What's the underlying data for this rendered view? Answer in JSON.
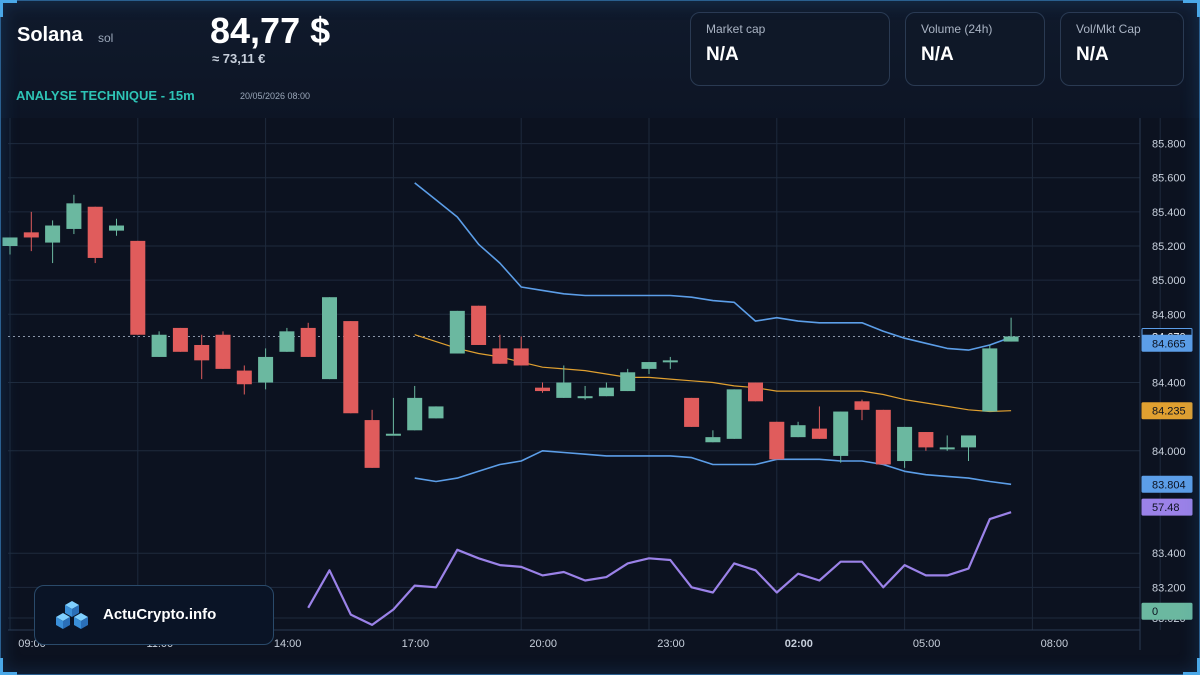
{
  "header": {
    "coin_name": "Solana",
    "coin_symbol": "sol",
    "price_usd": "84,77 $",
    "price_eur": "≈ 73,11 €",
    "analysis_label": "ANALYSE TECHNIQUE - 15m",
    "analysis_date": "20/05/2026 08:00"
  },
  "stats": [
    {
      "label": "Market cap",
      "value": "N/A"
    },
    {
      "label": "Volume (24h)",
      "value": "N/A"
    },
    {
      "label": "Vol/Mkt Cap",
      "value": "N/A"
    }
  ],
  "logo": {
    "text": "ActuCrypto.info"
  },
  "chart_data": {
    "type": "candlestick",
    "ylim": [
      82.95,
      85.95
    ],
    "y_ticks": [
      "85.800",
      "85.600",
      "85.400",
      "85.200",
      "85.000",
      "84.800",
      "84.400",
      "84.000",
      "83.400",
      "83.200",
      "83.020"
    ],
    "x_ticks": [
      "09:00",
      "11:00",
      "14:00",
      "17:00",
      "20:00",
      "23:00",
      "02:00",
      "05:00",
      "08:00"
    ],
    "x_ticks_bold": [
      "02:00"
    ],
    "colors": {
      "up": "#6bb8a0",
      "down": "#e05c5c",
      "bollinger": "#5c9ee8",
      "ma": "#e0a030",
      "rsi": "#9b82e8",
      "grid": "#1e2a3c",
      "axis_text": "#c8d0dc"
    },
    "candles": [
      {
        "o": 85.2,
        "h": 85.25,
        "l": 85.15,
        "c": 85.25
      },
      {
        "o": 85.28,
        "h": 85.4,
        "l": 85.17,
        "c": 85.25
      },
      {
        "o": 85.22,
        "h": 85.35,
        "l": 85.1,
        "c": 85.32
      },
      {
        "o": 85.3,
        "h": 85.5,
        "l": 85.27,
        "c": 85.45
      },
      {
        "o": 85.43,
        "h": 85.43,
        "l": 85.1,
        "c": 85.13
      },
      {
        "o": 85.29,
        "h": 85.36,
        "l": 85.26,
        "c": 85.32
      },
      {
        "o": 85.23,
        "h": 85.23,
        "l": 84.68,
        "c": 84.68
      },
      {
        "o": 84.55,
        "h": 84.7,
        "l": 84.55,
        "c": 84.68
      },
      {
        "o": 84.72,
        "h": 84.72,
        "l": 84.58,
        "c": 84.58
      },
      {
        "o": 84.62,
        "h": 84.68,
        "l": 84.42,
        "c": 84.53
      },
      {
        "o": 84.68,
        "h": 84.7,
        "l": 84.48,
        "c": 84.48
      },
      {
        "o": 84.47,
        "h": 84.5,
        "l": 84.33,
        "c": 84.39
      },
      {
        "o": 84.4,
        "h": 84.6,
        "l": 84.36,
        "c": 84.55
      },
      {
        "o": 84.58,
        "h": 84.72,
        "l": 84.58,
        "c": 84.7
      },
      {
        "o": 84.72,
        "h": 84.75,
        "l": 84.55,
        "c": 84.55
      },
      {
        "o": 84.42,
        "h": 84.9,
        "l": 84.42,
        "c": 84.9
      },
      {
        "o": 84.76,
        "h": 84.76,
        "l": 84.22,
        "c": 84.22
      },
      {
        "o": 84.18,
        "h": 84.24,
        "l": 83.9,
        "c": 83.9
      },
      {
        "o": 84.1,
        "h": 84.31,
        "l": 84.1,
        "c": 84.1
      },
      {
        "o": 84.12,
        "h": 84.38,
        "l": 84.12,
        "c": 84.31
      },
      {
        "o": 84.19,
        "h": 84.26,
        "l": 84.19,
        "c": 84.26
      },
      {
        "o": 84.57,
        "h": 84.82,
        "l": 84.57,
        "c": 84.82
      },
      {
        "o": 84.85,
        "h": 84.85,
        "l": 84.62,
        "c": 84.62
      },
      {
        "o": 84.6,
        "h": 84.68,
        "l": 84.51,
        "c": 84.51
      },
      {
        "o": 84.6,
        "h": 84.67,
        "l": 84.5,
        "c": 84.5
      },
      {
        "o": 84.37,
        "h": 84.4,
        "l": 84.34,
        "c": 84.35
      },
      {
        "o": 84.31,
        "h": 84.5,
        "l": 84.31,
        "c": 84.4
      },
      {
        "o": 84.32,
        "h": 84.38,
        "l": 84.3,
        "c": 84.32
      },
      {
        "o": 84.32,
        "h": 84.4,
        "l": 84.32,
        "c": 84.37
      },
      {
        "o": 84.35,
        "h": 84.48,
        "l": 84.35,
        "c": 84.46
      },
      {
        "o": 84.48,
        "h": 84.52,
        "l": 84.45,
        "c": 84.52
      },
      {
        "o": 84.53,
        "h": 84.55,
        "l": 84.48,
        "c": 84.53
      },
      {
        "o": 84.31,
        "h": 84.31,
        "l": 84.14,
        "c": 84.14
      },
      {
        "o": 84.05,
        "h": 84.12,
        "l": 84.05,
        "c": 84.08
      },
      {
        "o": 84.07,
        "h": 84.36,
        "l": 84.07,
        "c": 84.36
      },
      {
        "o": 84.4,
        "h": 84.4,
        "l": 84.29,
        "c": 84.29
      },
      {
        "o": 84.17,
        "h": 84.17,
        "l": 83.95,
        "c": 83.95
      },
      {
        "o": 84.08,
        "h": 84.17,
        "l": 84.08,
        "c": 84.15
      },
      {
        "o": 84.13,
        "h": 84.26,
        "l": 84.07,
        "c": 84.07
      },
      {
        "o": 83.97,
        "h": 84.23,
        "l": 83.93,
        "c": 84.23
      },
      {
        "o": 84.29,
        "h": 84.3,
        "l": 84.18,
        "c": 84.24
      },
      {
        "o": 84.24,
        "h": 84.24,
        "l": 83.92,
        "c": 83.92
      },
      {
        "o": 83.94,
        "h": 84.14,
        "l": 83.9,
        "c": 84.14
      },
      {
        "o": 84.11,
        "h": 84.11,
        "l": 84.0,
        "c": 84.02
      },
      {
        "o": 84.02,
        "h": 84.09,
        "l": 84.0,
        "c": 84.02
      },
      {
        "o": 84.02,
        "h": 84.09,
        "l": 83.94,
        "c": 84.09
      },
      {
        "o": 84.23,
        "h": 84.62,
        "l": 84.23,
        "c": 84.6
      },
      {
        "o": 84.64,
        "h": 84.78,
        "l": 84.64,
        "c": 84.67
      }
    ],
    "bollinger_upper": [
      {
        "i": 19,
        "v": 85.57
      },
      {
        "i": 20,
        "v": 85.47
      },
      {
        "i": 21,
        "v": 85.37
      },
      {
        "i": 22,
        "v": 85.21
      },
      {
        "i": 23,
        "v": 85.1
      },
      {
        "i": 24,
        "v": 84.96
      },
      {
        "i": 25,
        "v": 84.94
      },
      {
        "i": 26,
        "v": 84.92
      },
      {
        "i": 27,
        "v": 84.91
      },
      {
        "i": 28,
        "v": 84.91
      },
      {
        "i": 29,
        "v": 84.91
      },
      {
        "i": 30,
        "v": 84.91
      },
      {
        "i": 31,
        "v": 84.91
      },
      {
        "i": 32,
        "v": 84.9
      },
      {
        "i": 33,
        "v": 84.88
      },
      {
        "i": 34,
        "v": 84.87
      },
      {
        "i": 35,
        "v": 84.76
      },
      {
        "i": 36,
        "v": 84.78
      },
      {
        "i": 37,
        "v": 84.76
      },
      {
        "i": 38,
        "v": 84.75
      },
      {
        "i": 39,
        "v": 84.75
      },
      {
        "i": 40,
        "v": 84.75
      },
      {
        "i": 41,
        "v": 84.7
      },
      {
        "i": 42,
        "v": 84.66
      },
      {
        "i": 43,
        "v": 84.63
      },
      {
        "i": 44,
        "v": 84.6
      },
      {
        "i": 45,
        "v": 84.59
      },
      {
        "i": 46,
        "v": 84.62
      },
      {
        "i": 47,
        "v": 84.665
      }
    ],
    "bollinger_lower": [
      {
        "i": 19,
        "v": 83.84
      },
      {
        "i": 20,
        "v": 83.82
      },
      {
        "i": 21,
        "v": 83.84
      },
      {
        "i": 22,
        "v": 83.88
      },
      {
        "i": 23,
        "v": 83.92
      },
      {
        "i": 24,
        "v": 83.94
      },
      {
        "i": 25,
        "v": 84.0
      },
      {
        "i": 26,
        "v": 83.99
      },
      {
        "i": 27,
        "v": 83.98
      },
      {
        "i": 28,
        "v": 83.97
      },
      {
        "i": 29,
        "v": 83.97
      },
      {
        "i": 30,
        "v": 83.97
      },
      {
        "i": 31,
        "v": 83.97
      },
      {
        "i": 32,
        "v": 83.96
      },
      {
        "i": 33,
        "v": 83.92
      },
      {
        "i": 34,
        "v": 83.92
      },
      {
        "i": 35,
        "v": 83.92
      },
      {
        "i": 36,
        "v": 83.95
      },
      {
        "i": 37,
        "v": 83.95
      },
      {
        "i": 38,
        "v": 83.95
      },
      {
        "i": 39,
        "v": 83.94
      },
      {
        "i": 40,
        "v": 83.94
      },
      {
        "i": 41,
        "v": 83.92
      },
      {
        "i": 42,
        "v": 83.88
      },
      {
        "i": 43,
        "v": 83.86
      },
      {
        "i": 44,
        "v": 83.85
      },
      {
        "i": 45,
        "v": 83.84
      },
      {
        "i": 46,
        "v": 83.82
      },
      {
        "i": 47,
        "v": 83.804
      }
    ],
    "moving_average": [
      {
        "i": 19,
        "v": 84.68
      },
      {
        "i": 20,
        "v": 84.64
      },
      {
        "i": 21,
        "v": 84.6
      },
      {
        "i": 22,
        "v": 84.57
      },
      {
        "i": 23,
        "v": 84.55
      },
      {
        "i": 24,
        "v": 84.52
      },
      {
        "i": 25,
        "v": 84.49
      },
      {
        "i": 26,
        "v": 84.48
      },
      {
        "i": 27,
        "v": 84.47
      },
      {
        "i": 28,
        "v": 84.45
      },
      {
        "i": 29,
        "v": 84.43
      },
      {
        "i": 30,
        "v": 84.43
      },
      {
        "i": 31,
        "v": 84.42
      },
      {
        "i": 32,
        "v": 84.41
      },
      {
        "i": 33,
        "v": 84.4
      },
      {
        "i": 34,
        "v": 84.38
      },
      {
        "i": 35,
        "v": 84.37
      },
      {
        "i": 36,
        "v": 84.35
      },
      {
        "i": 37,
        "v": 84.35
      },
      {
        "i": 38,
        "v": 84.35
      },
      {
        "i": 39,
        "v": 84.35
      },
      {
        "i": 40,
        "v": 84.35
      },
      {
        "i": 41,
        "v": 84.33
      },
      {
        "i": 42,
        "v": 84.3
      },
      {
        "i": 43,
        "v": 84.28
      },
      {
        "i": 44,
        "v": 84.26
      },
      {
        "i": 45,
        "v": 84.24
      },
      {
        "i": 46,
        "v": 84.23
      },
      {
        "i": 47,
        "v": 84.235
      }
    ],
    "rsi": [
      {
        "i": 14,
        "v": 83.08
      },
      {
        "i": 15,
        "v": 83.3
      },
      {
        "i": 16,
        "v": 83.04
      },
      {
        "i": 17,
        "v": 82.98
      },
      {
        "i": 18,
        "v": 83.07
      },
      {
        "i": 19,
        "v": 83.21
      },
      {
        "i": 20,
        "v": 83.2
      },
      {
        "i": 21,
        "v": 83.42
      },
      {
        "i": 22,
        "v": 83.37
      },
      {
        "i": 23,
        "v": 83.33
      },
      {
        "i": 24,
        "v": 83.32
      },
      {
        "i": 25,
        "v": 83.27
      },
      {
        "i": 26,
        "v": 83.29
      },
      {
        "i": 27,
        "v": 83.24
      },
      {
        "i": 28,
        "v": 83.26
      },
      {
        "i": 29,
        "v": 83.34
      },
      {
        "i": 30,
        "v": 83.37
      },
      {
        "i": 31,
        "v": 83.36
      },
      {
        "i": 32,
        "v": 83.2
      },
      {
        "i": 33,
        "v": 83.17
      },
      {
        "i": 34,
        "v": 83.34
      },
      {
        "i": 35,
        "v": 83.3
      },
      {
        "i": 36,
        "v": 83.17
      },
      {
        "i": 37,
        "v": 83.28
      },
      {
        "i": 38,
        "v": 83.24
      },
      {
        "i": 39,
        "v": 83.35
      },
      {
        "i": 40,
        "v": 83.35
      },
      {
        "i": 41,
        "v": 83.2
      },
      {
        "i": 42,
        "v": 83.33
      },
      {
        "i": 43,
        "v": 83.27
      },
      {
        "i": 44,
        "v": 83.27
      },
      {
        "i": 45,
        "v": 83.31
      },
      {
        "i": 46,
        "v": 83.6
      },
      {
        "i": 47,
        "v": 83.64
      }
    ],
    "price_labels": [
      {
        "text": "84.670",
        "v": 84.67,
        "bg": "#0c1220",
        "color": "#ffffff",
        "border": "#5c9ee8"
      },
      {
        "text": "84.665",
        "v": 84.63,
        "bg": "#5c9ee8",
        "color": "#0c1220",
        "border": "#5c9ee8"
      },
      {
        "text": "84.235",
        "v": 84.235,
        "bg": "#e0a030",
        "color": "#0c1220",
        "border": "#e0a030"
      },
      {
        "text": "83.804",
        "v": 83.804,
        "bg": "#5c9ee8",
        "color": "#0c1220",
        "border": "#5c9ee8"
      },
      {
        "text": "57.48",
        "v": 83.67,
        "bg": "#9b82e8",
        "color": "#0c1220",
        "border": "#9b82e8"
      },
      {
        "text": "0",
        "v": 83.06,
        "bg": "#6bb8a0",
        "color": "#0c1220",
        "border": "#6bb8a0"
      }
    ],
    "current_price": 84.67
  }
}
